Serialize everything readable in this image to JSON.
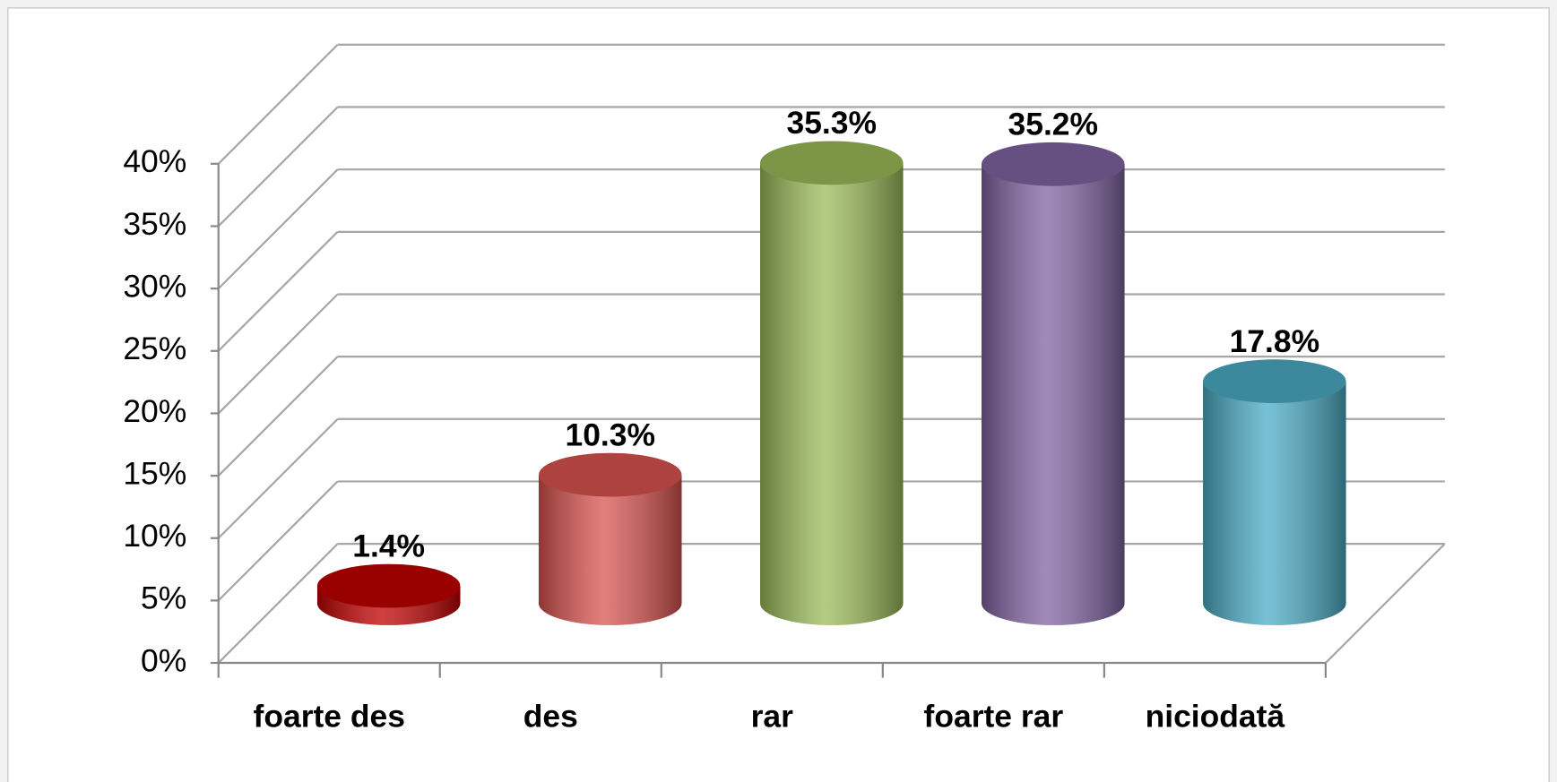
{
  "chart_data": {
    "type": "bar3d",
    "categories": [
      "foarte des",
      "des",
      "rar",
      "foarte rar",
      "niciodată"
    ],
    "values": [
      1.4,
      10.3,
      35.3,
      35.2,
      17.8
    ],
    "value_labels": [
      "1.4%",
      "10.3%",
      "35.3%",
      "35.2%",
      "17.8%"
    ],
    "colors": [
      "#c00000",
      "#d9534f",
      "#9bbb59",
      "#8064a2",
      "#4bacc6"
    ],
    "ylim": [
      0,
      40
    ],
    "yticks": [
      {
        "value": 0,
        "label": "0%"
      },
      {
        "value": 5,
        "label": "5%"
      },
      {
        "value": 10,
        "label": "10%"
      },
      {
        "value": 15,
        "label": "15%"
      },
      {
        "value": 20,
        "label": "20%"
      },
      {
        "value": 25,
        "label": "25%"
      },
      {
        "value": 30,
        "label": "30%"
      },
      {
        "value": 35,
        "label": "35%"
      },
      {
        "value": 40,
        "label": "40%"
      }
    ],
    "grid": true
  }
}
